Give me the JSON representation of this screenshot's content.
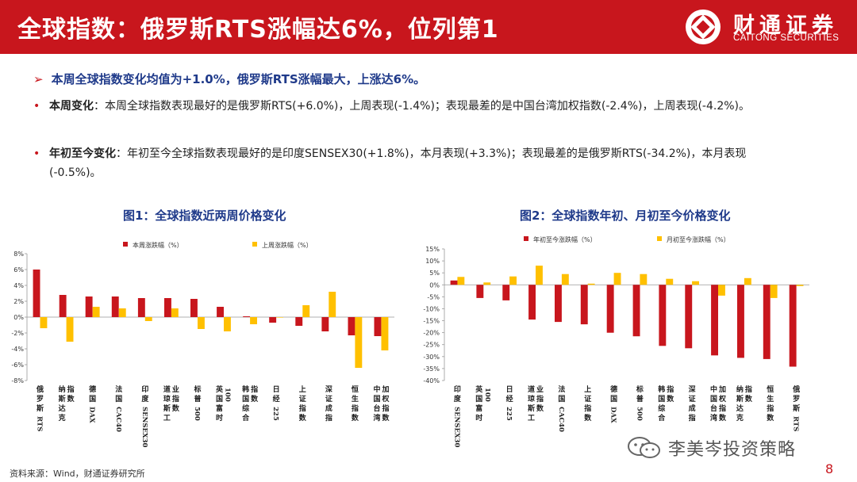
{
  "header": {
    "title": "全球指数：俄罗斯RTS涨幅达6%，位列第1",
    "logo_cn": "财通证券",
    "logo_en": "CAITONG SECURITIES"
  },
  "summary": "本周全球指数变化均值为+1.0%，俄罗斯RTS涨幅最大，上涨达6%。",
  "bullets": [
    {
      "label": "本周变化",
      "text": "：本周全球指数表现最好的是俄罗斯RTS(+6.0%)，上周表现(-1.4%)；表现最差的是中国台湾加权指数(-2.4%)，上周表现(-4.2%)。"
    },
    {
      "label": "年初至今变化",
      "text": "：年初至今全球指数表现最好的是印度SENSEX30(+1.8%)，本月表现(+3.3%)；表现最差的是俄罗斯RTS(-34.2%)，本月表现(-0.5%)。"
    }
  ],
  "chart_data": [
    {
      "type": "bar",
      "title": "图1：全球指数近两周价格变化",
      "categories": [
        "俄罗斯RTS",
        "纳斯达克指数",
        "德国DAX",
        "法国CAC40",
        "印度SENSEX30",
        "道琼斯工业指数",
        "标普500",
        "英国富时100",
        "韩国综合指数",
        "日经225",
        "上证指数",
        "深证成指",
        "恒生指数",
        "中国台湾加权指数"
      ],
      "series": [
        {
          "name": "本周涨跌幅（%）",
          "color": "#c8161d",
          "values": [
            6.0,
            2.8,
            2.6,
            2.6,
            2.4,
            2.4,
            2.3,
            1.3,
            0.1,
            -0.7,
            -1.1,
            -1.8,
            -2.3,
            -2.4
          ]
        },
        {
          "name": "上周涨跌幅（%）",
          "color": "#ffc000",
          "values": [
            -1.4,
            -3.1,
            1.3,
            1.1,
            -0.5,
            1.1,
            -1.5,
            -1.8,
            -0.9,
            0.0,
            1.5,
            3.2,
            -6.4,
            -4.2
          ]
        }
      ],
      "ylim": [
        -8,
        8
      ],
      "yticks": [
        "8%",
        "6%",
        "4%",
        "2%",
        "0%",
        "-2%",
        "-4%",
        "-6%",
        "-8%"
      ],
      "legend": "top"
    },
    {
      "type": "bar",
      "title": "图2：全球指数年初、月初至今价格变化",
      "categories": [
        "印度SENSEX30",
        "英国富时100",
        "日经225",
        "道琼斯工业指数",
        "法国CAC40",
        "上证指数",
        "德国DAX",
        "标普500",
        "韩国综合指数",
        "深证成指",
        "中国台湾加权指数",
        "纳斯达克指数",
        "恒生指数",
        "俄罗斯RTS"
      ],
      "series": [
        {
          "name": "年初至今涨跌幅（%）",
          "color": "#c8161d",
          "values": [
            1.8,
            -5.5,
            -6.5,
            -14.5,
            -15.5,
            -16.5,
            -20.0,
            -21.5,
            -25.5,
            -26.5,
            -29.5,
            -30.5,
            -31.0,
            -34.2
          ]
        },
        {
          "name": "月初至今涨跌幅（%）",
          "color": "#ffc000",
          "values": [
            3.3,
            1.0,
            3.5,
            8.0,
            4.5,
            0.5,
            5.0,
            4.5,
            2.5,
            1.5,
            -4.5,
            2.8,
            -5.5,
            -0.5
          ]
        }
      ],
      "ylim": [
        -40,
        15
      ],
      "yticks": [
        "15%",
        "10%",
        "5%",
        "0%",
        "-5%",
        "-10%",
        "-15%",
        "-20%",
        "-25%",
        "-30%",
        "-35%",
        "-40%"
      ],
      "legend": "top"
    }
  ],
  "source": "资料来源：Wind，财通证券研究所",
  "watermark": "李美岑投资策略",
  "page_number": "8",
  "colors": {
    "brand_red": "#c8161d",
    "accent_yellow": "#ffc000",
    "title_blue": "#1f3a8a"
  }
}
